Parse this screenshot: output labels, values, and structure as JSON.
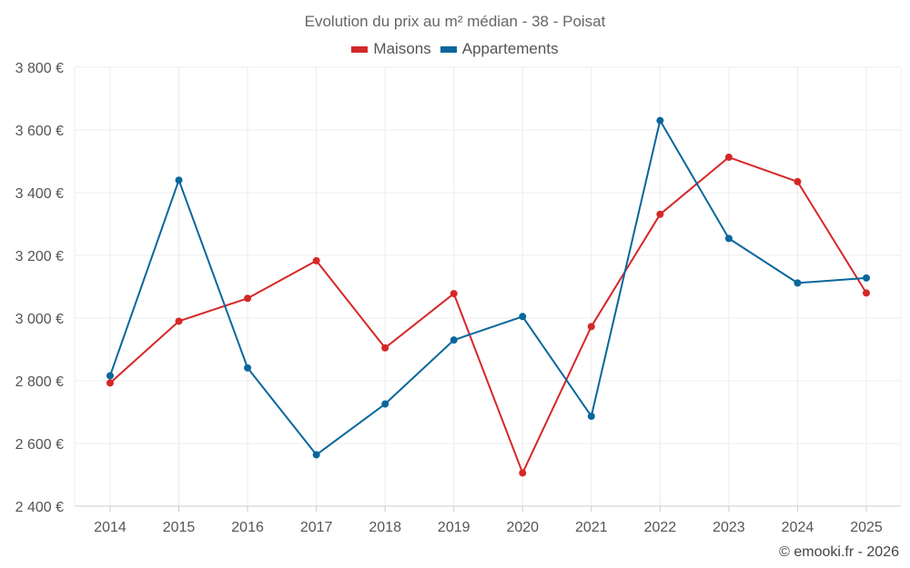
{
  "chart_data": {
    "type": "line",
    "title": "Evolution du prix au m² médian - 38 - Poisat",
    "x": [
      "2014",
      "2015",
      "2016",
      "2017",
      "2018",
      "2019",
      "2020",
      "2021",
      "2022",
      "2023",
      "2024",
      "2025"
    ],
    "series": [
      {
        "name": "Maisons",
        "color": "#d62728",
        "values": [
          2793,
          2990,
          3063,
          3183,
          2905,
          3078,
          2506,
          2973,
          3331,
          3513,
          3435,
          3080
        ]
      },
      {
        "name": "Appartements",
        "color": "#08679c",
        "values": [
          2816,
          3440,
          2841,
          2564,
          2726,
          2930,
          3005,
          2687,
          3630,
          3254,
          3112,
          3128
        ]
      }
    ],
    "ylim": [
      2400,
      3800
    ],
    "yticks": [
      2400,
      2600,
      2800,
      3000,
      3200,
      3400,
      3600,
      3800
    ],
    "ytick_labels": [
      "2 400 €",
      "2 600 €",
      "2 800 €",
      "3 000 €",
      "3 200 €",
      "3 400 €",
      "3 600 €",
      "3 800 €"
    ],
    "xlabel": "",
    "ylabel": "",
    "grid": true,
    "legend": "top-center"
  },
  "footer": "© emooki.fr - 2026"
}
